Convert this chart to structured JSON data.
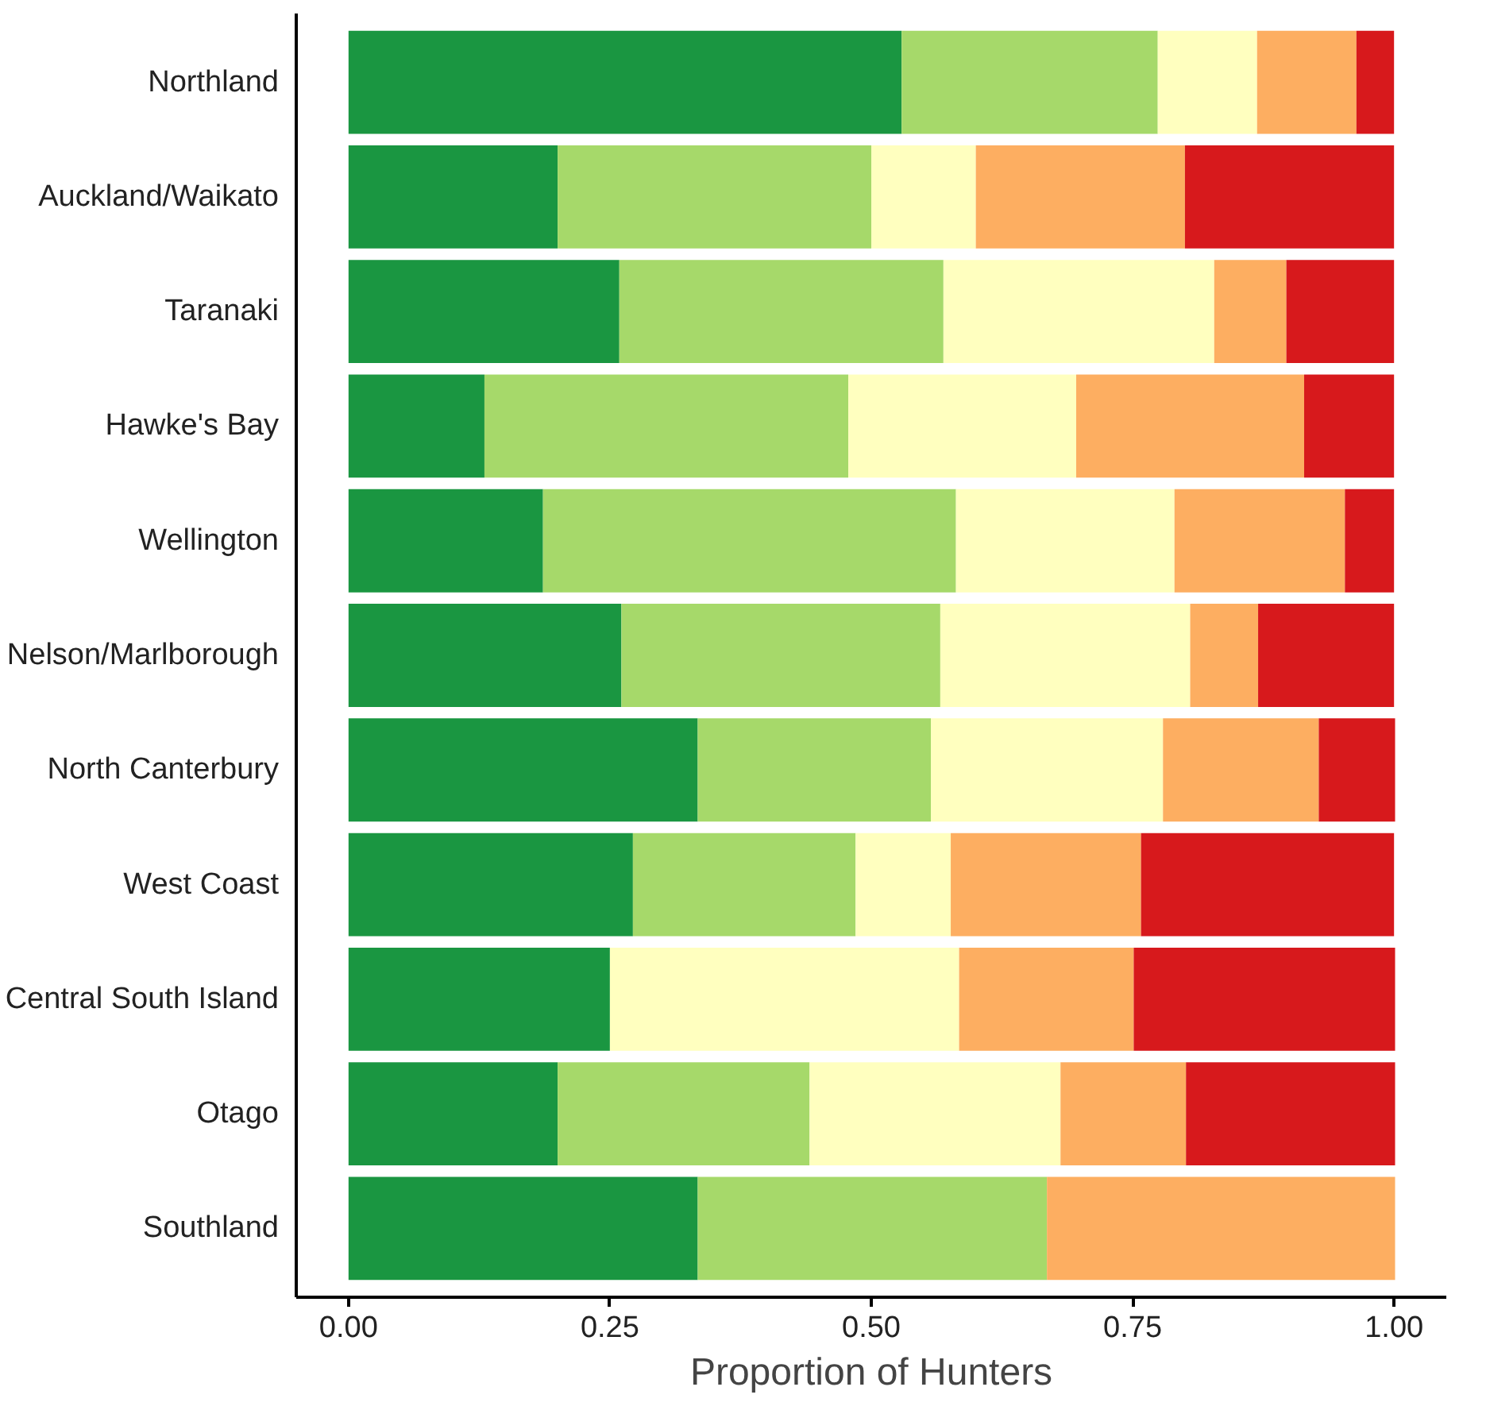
{
  "chart_data": {
    "type": "bar",
    "orientation": "horizontal",
    "stacked": true,
    "xlabel": "Proportion of Hunters",
    "categories": [
      "Northland",
      "Auckland/Waikato",
      "Taranaki",
      "Hawke's Bay",
      "Wellington",
      "Nelson/Marlborough",
      "North Canterbury",
      "West Coast",
      "Central South Island",
      "Otago",
      "Southland"
    ],
    "series": [
      {
        "color": "#1a9641",
        "values": [
          0.529,
          0.2,
          0.259,
          0.13,
          0.186,
          0.261,
          0.334,
          0.272,
          0.25,
          0.2,
          0.334
        ]
      },
      {
        "color": "#a6d96a",
        "values": [
          0.245,
          0.3,
          0.31,
          0.348,
          0.395,
          0.305,
          0.223,
          0.213,
          0,
          0.241,
          0.334
        ]
      },
      {
        "color": "#ffffbf",
        "values": [
          0.095,
          0.1,
          0.259,
          0.218,
          0.209,
          0.239,
          0.222,
          0.091,
          0.334,
          0.24,
          0
        ]
      },
      {
        "color": "#fdae61",
        "values": [
          0.095,
          0.2,
          0.069,
          0.218,
          0.163,
          0.065,
          0.149,
          0.182,
          0.167,
          0.12,
          0.333
        ]
      },
      {
        "color": "#d7191c",
        "values": [
          0.036,
          0.2,
          0.103,
          0.086,
          0.047,
          0.13,
          0.073,
          0.242,
          0.25,
          0.2,
          0
        ]
      }
    ],
    "xlim": [
      -0.05,
      1.05
    ],
    "xticks": [
      {
        "value": 0,
        "label": "0.00"
      },
      {
        "value": 0.25,
        "label": "0.25"
      },
      {
        "value": 0.5,
        "label": "0.50"
      },
      {
        "value": 0.75,
        "label": "0.75"
      },
      {
        "value": 1,
        "label": "1.00"
      }
    ],
    "grid": false
  }
}
